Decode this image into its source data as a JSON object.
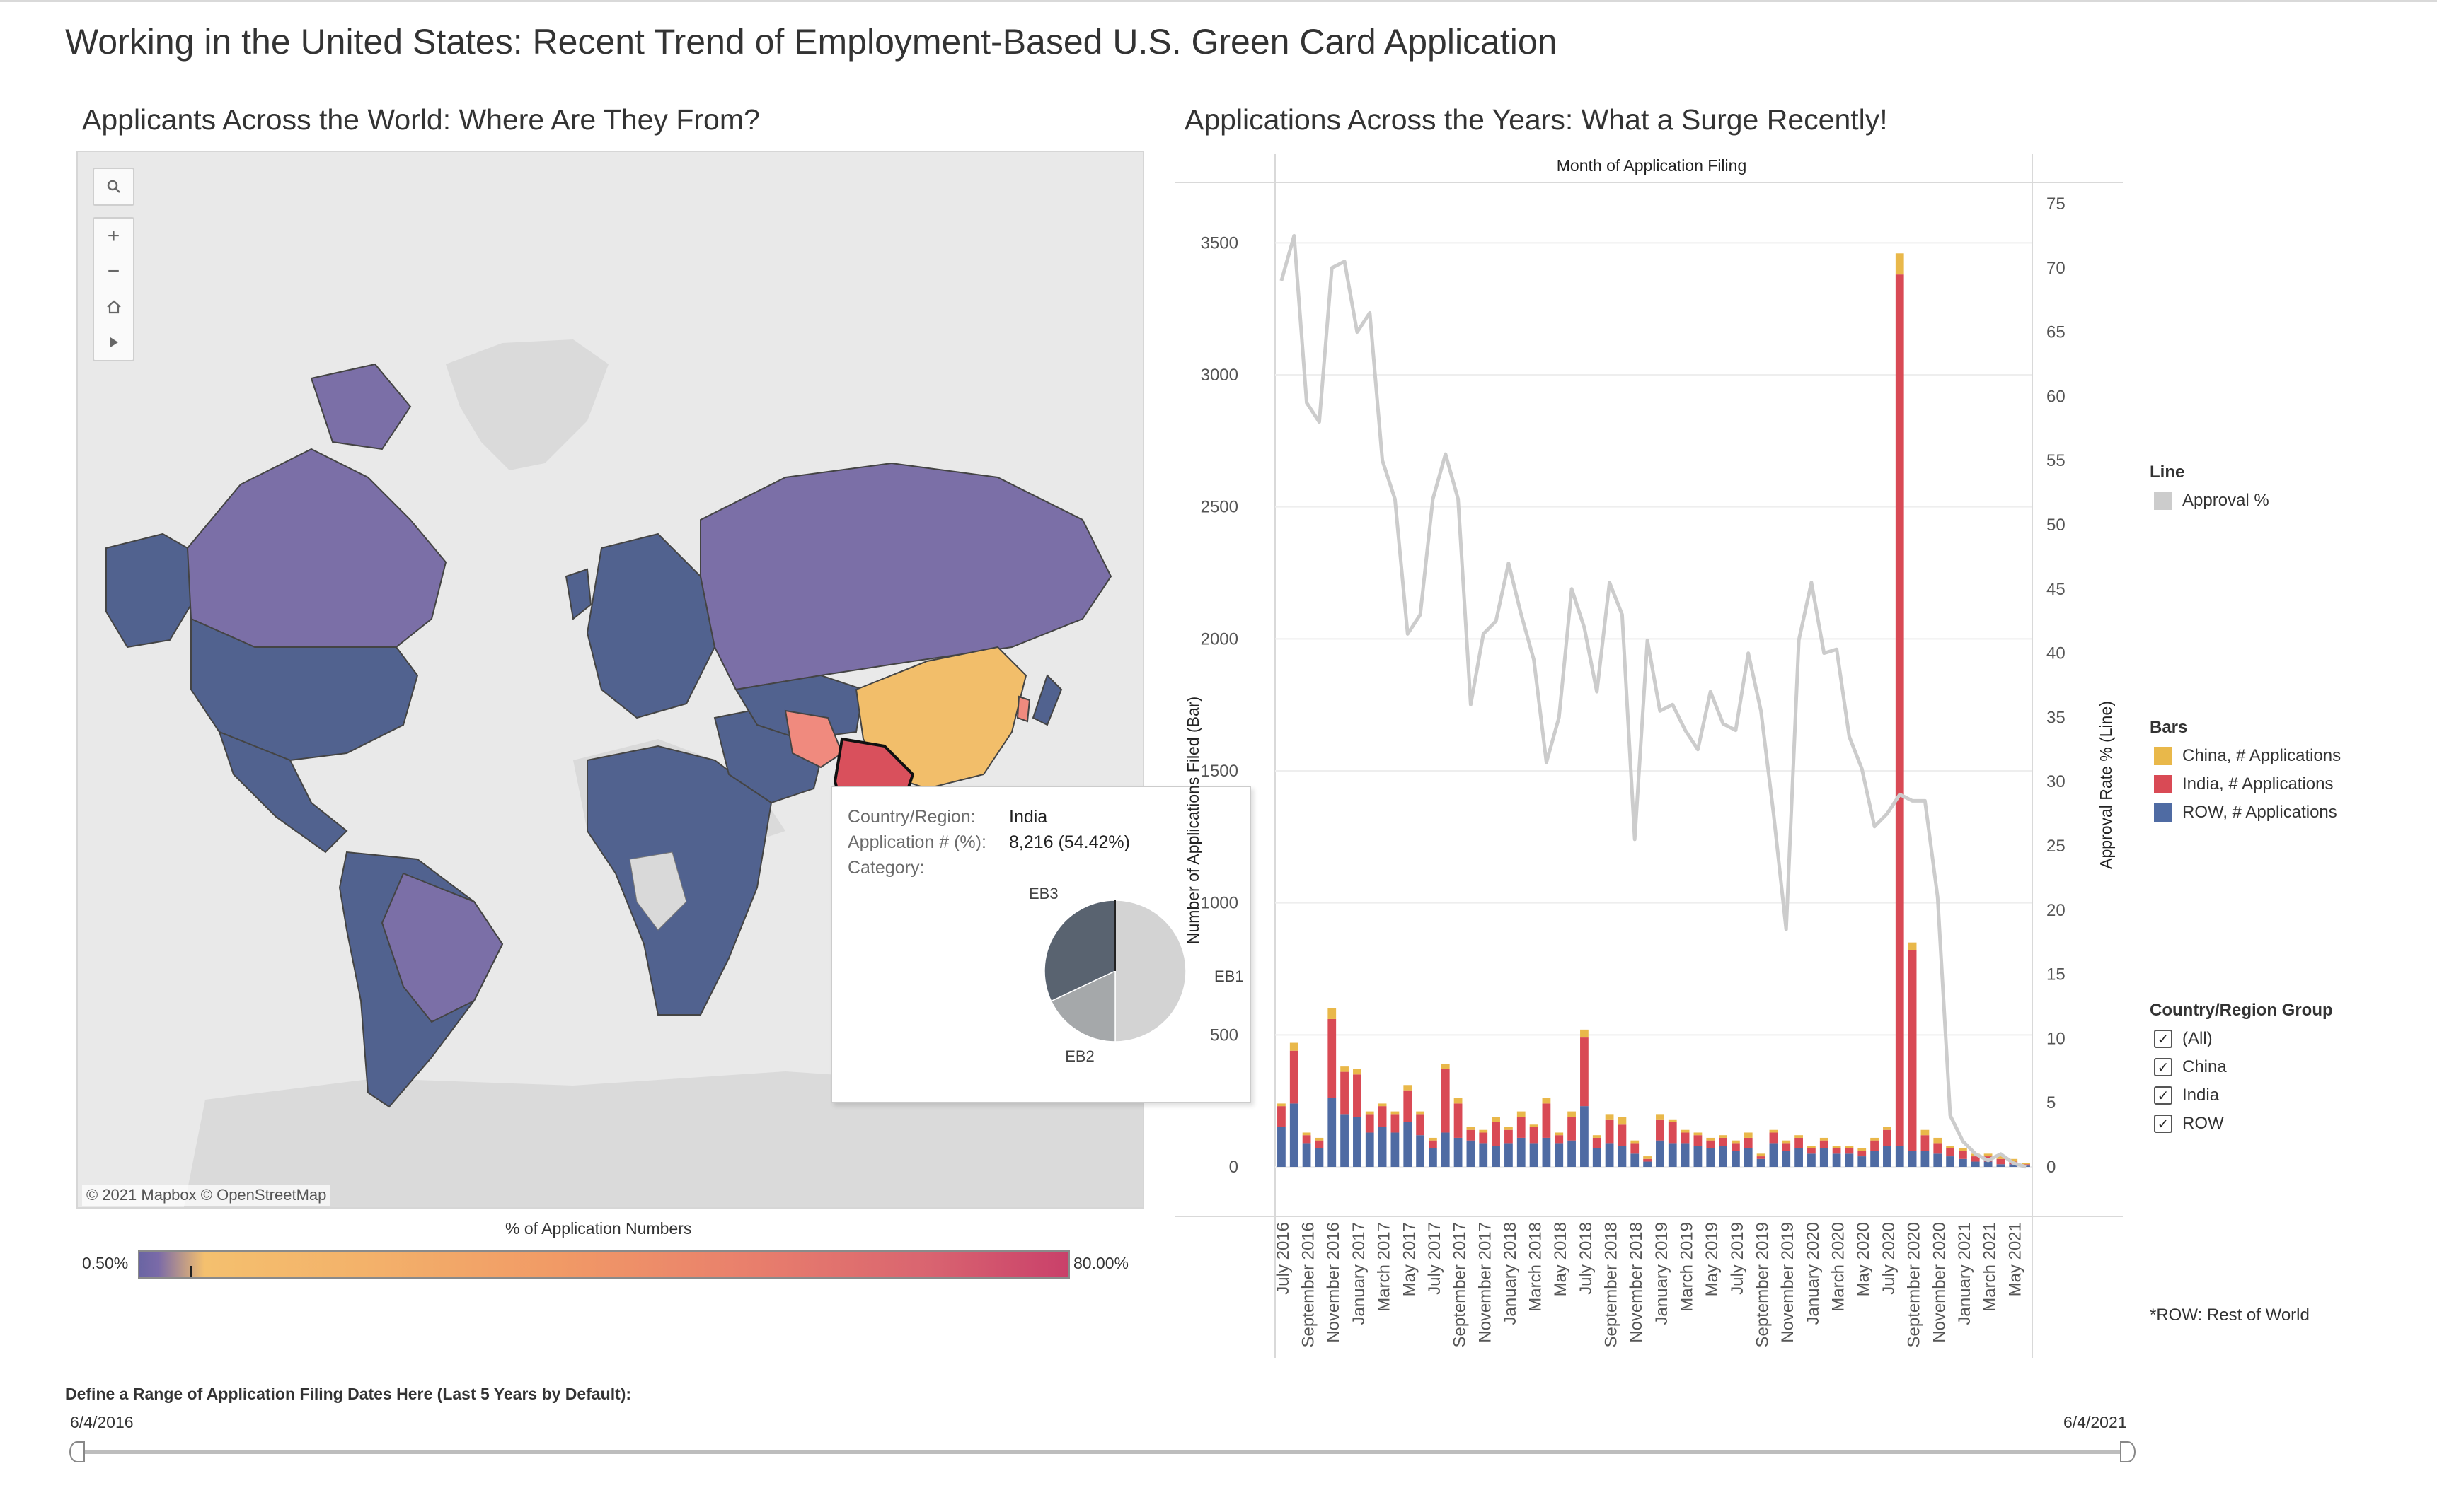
{
  "page": {
    "title": "Working in the United States: Recent Trend of Employment-Based U.S. Green Card Application"
  },
  "map": {
    "title": "Applicants Across the World: Where Are They From?",
    "attribution": "© 2021 Mapbox  © OpenStreetMap",
    "legend_title": "% of Application Numbers",
    "legend_min": "0.50%",
    "legend_max": "80.00%",
    "highlight_colors": {
      "row": "#51628f",
      "china": "#f2be6a",
      "india": "#d9505c",
      "iran": "#f08a7e",
      "mid": "#7b6fa7",
      "none": "#d9d9d9"
    },
    "controls": {
      "search": "search-icon",
      "zoom_in": "+",
      "zoom_out": "−",
      "home": "home-icon",
      "pan": "play-icon"
    }
  },
  "tooltip": {
    "country_label": "Country/Region:",
    "country_value": "India",
    "apps_label": "Application # (%):",
    "apps_value": "8,216 (54.42%)",
    "category_label": "Category:",
    "pie": {
      "slices": [
        {
          "label": "EB1",
          "fraction": 0.5,
          "color": "#d3d3d3"
        },
        {
          "label": "EB2",
          "fraction": 0.18,
          "color": "#a5a8aa"
        },
        {
          "label": "EB3",
          "fraction": 0.32,
          "color": "#596370"
        }
      ]
    }
  },
  "chart": {
    "title": "Applications Across the Years: What a Surge Recently!",
    "top_axis_title": "Month of Application Filing",
    "left_axis_title": "Number of Applications Filed (Bar)",
    "right_axis_title": "Approval Rate % (Line)",
    "footnote": "*ROW:  Rest of World"
  },
  "chart_data": {
    "type": "bar",
    "description_free": true,
    "ylim": [
      0,
      3600
    ],
    "y2lim": [
      0,
      75
    ],
    "yticks": [
      "0",
      "500",
      "1000",
      "1500",
      "2000",
      "2500",
      "3000",
      "3500"
    ],
    "y2ticks": [
      "0",
      "5",
      "10",
      "15",
      "20",
      "25",
      "30",
      "35",
      "40",
      "45",
      "50",
      "55",
      "60",
      "65",
      "70",
      "75"
    ],
    "x_tick_labels": [
      "July 2016",
      "September 2016",
      "November 2016",
      "January 2017",
      "March 2017",
      "May 2017",
      "July 2017",
      "September 2017",
      "November 2017",
      "January 2018",
      "March 2018",
      "May 2018",
      "July 2018",
      "September 2018",
      "November 2018",
      "January 2019",
      "March 2019",
      "May 2019",
      "July 2019",
      "September 2019",
      "November 2019",
      "January 2020",
      "March 2020",
      "May 2020",
      "July 2020",
      "September 2020",
      "November 2020",
      "January 2021",
      "March 2021",
      "May 2021"
    ],
    "series": [
      {
        "name": "ROW, # Applications",
        "color": "#4f6ba3",
        "values": [
          150,
          240,
          90,
          70,
          260,
          200,
          190,
          130,
          150,
          130,
          170,
          120,
          70,
          130,
          110,
          100,
          90,
          80,
          90,
          110,
          90,
          110,
          90,
          100,
          230,
          70,
          90,
          80,
          50,
          20,
          100,
          90,
          90,
          80,
          70,
          80,
          60,
          70,
          30,
          90,
          60,
          70,
          50,
          70,
          50,
          50,
          40,
          60,
          80,
          80,
          60,
          60,
          50,
          40,
          30,
          20,
          20,
          10,
          10,
          5
        ]
      },
      {
        "name": "India, # Applications",
        "color": "#d94a55",
        "values": [
          80,
          200,
          30,
          30,
          300,
          160,
          160,
          70,
          80,
          70,
          120,
          80,
          30,
          240,
          130,
          40,
          40,
          90,
          50,
          80,
          60,
          130,
          30,
          90,
          260,
          40,
          90,
          80,
          40,
          10,
          80,
          80,
          40,
          40,
          30,
          30,
          30,
          40,
          10,
          40,
          30,
          40,
          20,
          30,
          20,
          20,
          20,
          40,
          60,
          3300,
          760,
          60,
          40,
          30,
          30,
          20,
          20,
          20,
          10,
          5
        ]
      },
      {
        "name": "China, # Applications",
        "color": "#e9b84a",
        "values": [
          10,
          30,
          10,
          10,
          40,
          20,
          20,
          10,
          10,
          10,
          20,
          10,
          10,
          20,
          20,
          10,
          10,
          20,
          10,
          20,
          10,
          20,
          10,
          20,
          30,
          10,
          20,
          30,
          10,
          10,
          20,
          10,
          10,
          10,
          10,
          10,
          10,
          20,
          10,
          10,
          10,
          10,
          10,
          10,
          10,
          10,
          10,
          10,
          10,
          80,
          30,
          20,
          20,
          10,
          10,
          10,
          10,
          10,
          10,
          5
        ]
      }
    ],
    "line": {
      "name": "Approval %",
      "color": "#cccccc",
      "values": [
        69,
        72.5,
        59.5,
        58,
        70,
        70.5,
        65,
        66.5,
        55,
        52,
        41.5,
        43,
        52,
        55.5,
        52,
        36,
        41.5,
        42.5,
        47,
        43,
        39.5,
        31.5,
        35,
        45,
        42,
        37,
        45.5,
        43,
        25.5,
        41,
        35.5,
        36,
        34,
        32.5,
        37,
        34.5,
        34,
        40,
        35.5,
        27.5,
        18.5,
        41,
        45.5,
        40,
        40.3,
        33.5,
        31,
        26.5,
        27.5,
        29,
        28.5,
        28.5,
        21,
        4,
        2,
        1,
        0.5,
        1,
        0.3,
        0
      ]
    },
    "legend": {
      "line_title": "Line",
      "line_item": "Approval %",
      "bars_title": "Bars",
      "bar_items": [
        "China, # Applications",
        "India, # Applications",
        "ROW, # Applications"
      ],
      "group_title": "Country/Region Group",
      "group_items": [
        "(All)",
        "China",
        "India",
        "ROW"
      ]
    }
  },
  "slider": {
    "label": "Define a Range of Application Filing Dates Here (Last 5 Years by Default):",
    "start": "6/4/2016",
    "end": "6/4/2021"
  }
}
